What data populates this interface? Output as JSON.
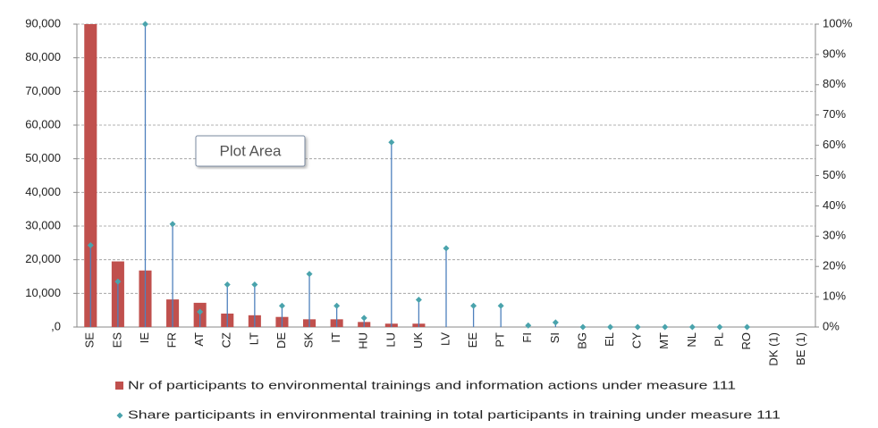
{
  "chart_data": {
    "type": "bar",
    "annotation": "Plot Area",
    "categories": [
      "SE",
      "ES",
      "IE",
      "FR",
      "AT",
      "CZ",
      "LT",
      "DE",
      "SK",
      "IT",
      "HU",
      "LU",
      "UK",
      "LV",
      "EE",
      "PT",
      "FI",
      "SI",
      "BG",
      "EL",
      "CY",
      "MT",
      "NL",
      "PL",
      "RO",
      "DK (1)",
      "BE (1)"
    ],
    "series": [
      {
        "name": "Nr of participants to environmental trainings and information actions under measure 111",
        "color": "#c0504d",
        "values": [
          90000,
          19500,
          16800,
          8200,
          7200,
          4000,
          3500,
          3000,
          2300,
          2300,
          1500,
          1000,
          1000,
          0,
          0,
          0,
          0,
          0,
          0,
          0,
          0,
          0,
          0,
          0,
          0,
          null,
          null
        ]
      },
      {
        "name": "Share participants in environmental training in total participants in training under measure 111",
        "color": "#4aa3ac",
        "axis": "y2",
        "drop_lines": true,
        "drop_line_color": "#4f81bd",
        "values": [
          27,
          15,
          100,
          34,
          5,
          14,
          14,
          7,
          17.5,
          7,
          3,
          61,
          9,
          26,
          7,
          7,
          0.5,
          1.5,
          0,
          0,
          0,
          0,
          0,
          0,
          0,
          null,
          null
        ]
      }
    ],
    "ylim": [
      0,
      90000
    ],
    "yticks": [
      {
        "value": 0,
        "label": ",0"
      },
      {
        "value": 10000,
        "label": "10,000"
      },
      {
        "value": 20000,
        "label": "20,000"
      },
      {
        "value": 30000,
        "label": "30,000"
      },
      {
        "value": 40000,
        "label": "40,000"
      },
      {
        "value": 50000,
        "label": "50,000"
      },
      {
        "value": 60000,
        "label": "60,000"
      },
      {
        "value": 70000,
        "label": "70,000"
      },
      {
        "value": 80000,
        "label": "80,000"
      },
      {
        "value": 90000,
        "label": "90,000"
      }
    ],
    "y2lim": [
      0,
      100
    ],
    "y2ticks": [
      {
        "value": 0,
        "label": "0%"
      },
      {
        "value": 10,
        "label": "10%"
      },
      {
        "value": 20,
        "label": "20%"
      },
      {
        "value": 30,
        "label": "30%"
      },
      {
        "value": 40,
        "label": "40%"
      },
      {
        "value": 50,
        "label": "50%"
      },
      {
        "value": 60,
        "label": "60%"
      },
      {
        "value": 70,
        "label": "70%"
      },
      {
        "value": 80,
        "label": "80%"
      },
      {
        "value": 90,
        "label": "90%"
      },
      {
        "value": 100,
        "label": "100%"
      }
    ],
    "grid": true
  }
}
